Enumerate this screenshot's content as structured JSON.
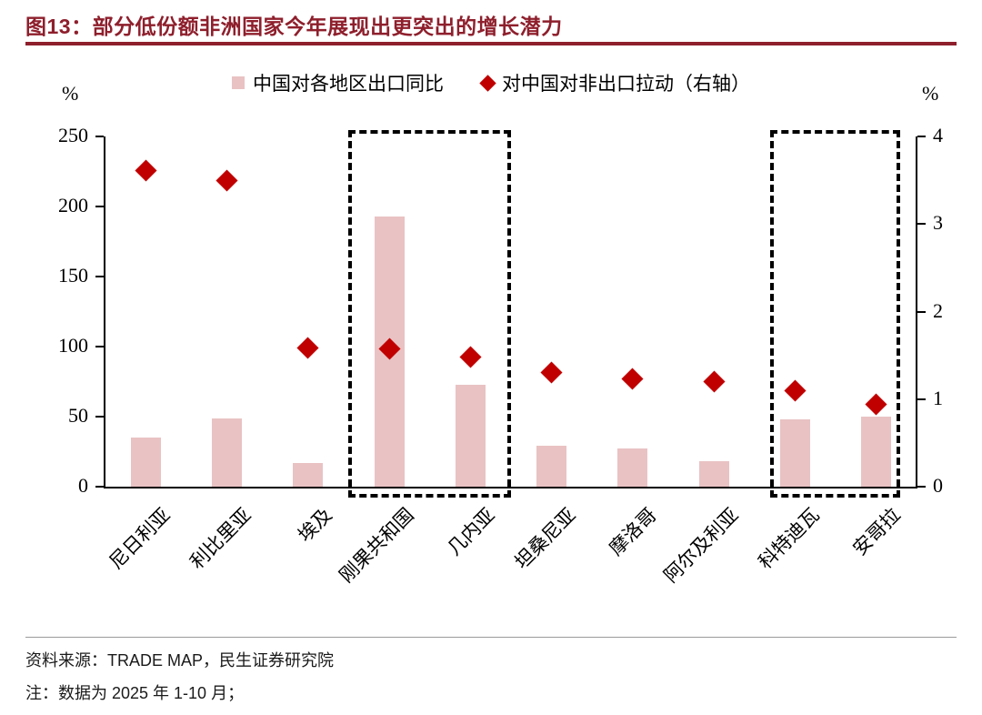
{
  "header": {
    "title": "图13：部分低份额非洲国家今年展现出更突出的增长潜力"
  },
  "colors": {
    "title_red": "#8e1f2c",
    "bar_pink": "#e9c2c3",
    "diamond_red": "#c00000",
    "axis_black": "#000000",
    "divider_gray": "#9a9a9a"
  },
  "chart_data": {
    "type": "bar",
    "title": "图13：部分低份额非洲国家今年展现出更突出的增长潜力",
    "categories": [
      "尼日利亚",
      "利比里亚",
      "埃及",
      "刚果共和国",
      "几内亚",
      "坦桑尼亚",
      "摩洛哥",
      "阿尔及利亚",
      "科特迪瓦",
      "安哥拉"
    ],
    "series": [
      {
        "name": "中国对各地区出口同比",
        "mark": "bar",
        "axis": "left",
        "color": "#e9c2c3",
        "values": [
          35,
          49,
          17,
          193,
          73,
          29,
          27,
          18,
          48,
          50
        ]
      },
      {
        "name": "对中国对非出口拉动（右轴）",
        "mark": "scatter-diamond",
        "axis": "right",
        "color": "#c00000",
        "values": [
          3.62,
          3.5,
          1.59,
          1.58,
          1.49,
          1.31,
          1.24,
          1.21,
          1.1,
          0.95
        ]
      }
    ],
    "left_axis": {
      "label": "%",
      "min": 0,
      "max": 250,
      "ticks": [
        0,
        50,
        100,
        150,
        200,
        250
      ]
    },
    "right_axis": {
      "label": "%",
      "min": 0,
      "max": 4,
      "ticks": [
        0,
        1,
        2,
        3,
        4
      ]
    },
    "grid": false,
    "legend_position": "top-center",
    "highlight_boxes": [
      {
        "from": 3,
        "to": 4,
        "pad": 45
      },
      {
        "from": 8,
        "to": 9,
        "pad": 27
      }
    ]
  },
  "footer": {
    "source": "资料来源：TRADE MAP，民生证券研究院",
    "note": "注：数据为 2025 年 1-10 月；"
  }
}
